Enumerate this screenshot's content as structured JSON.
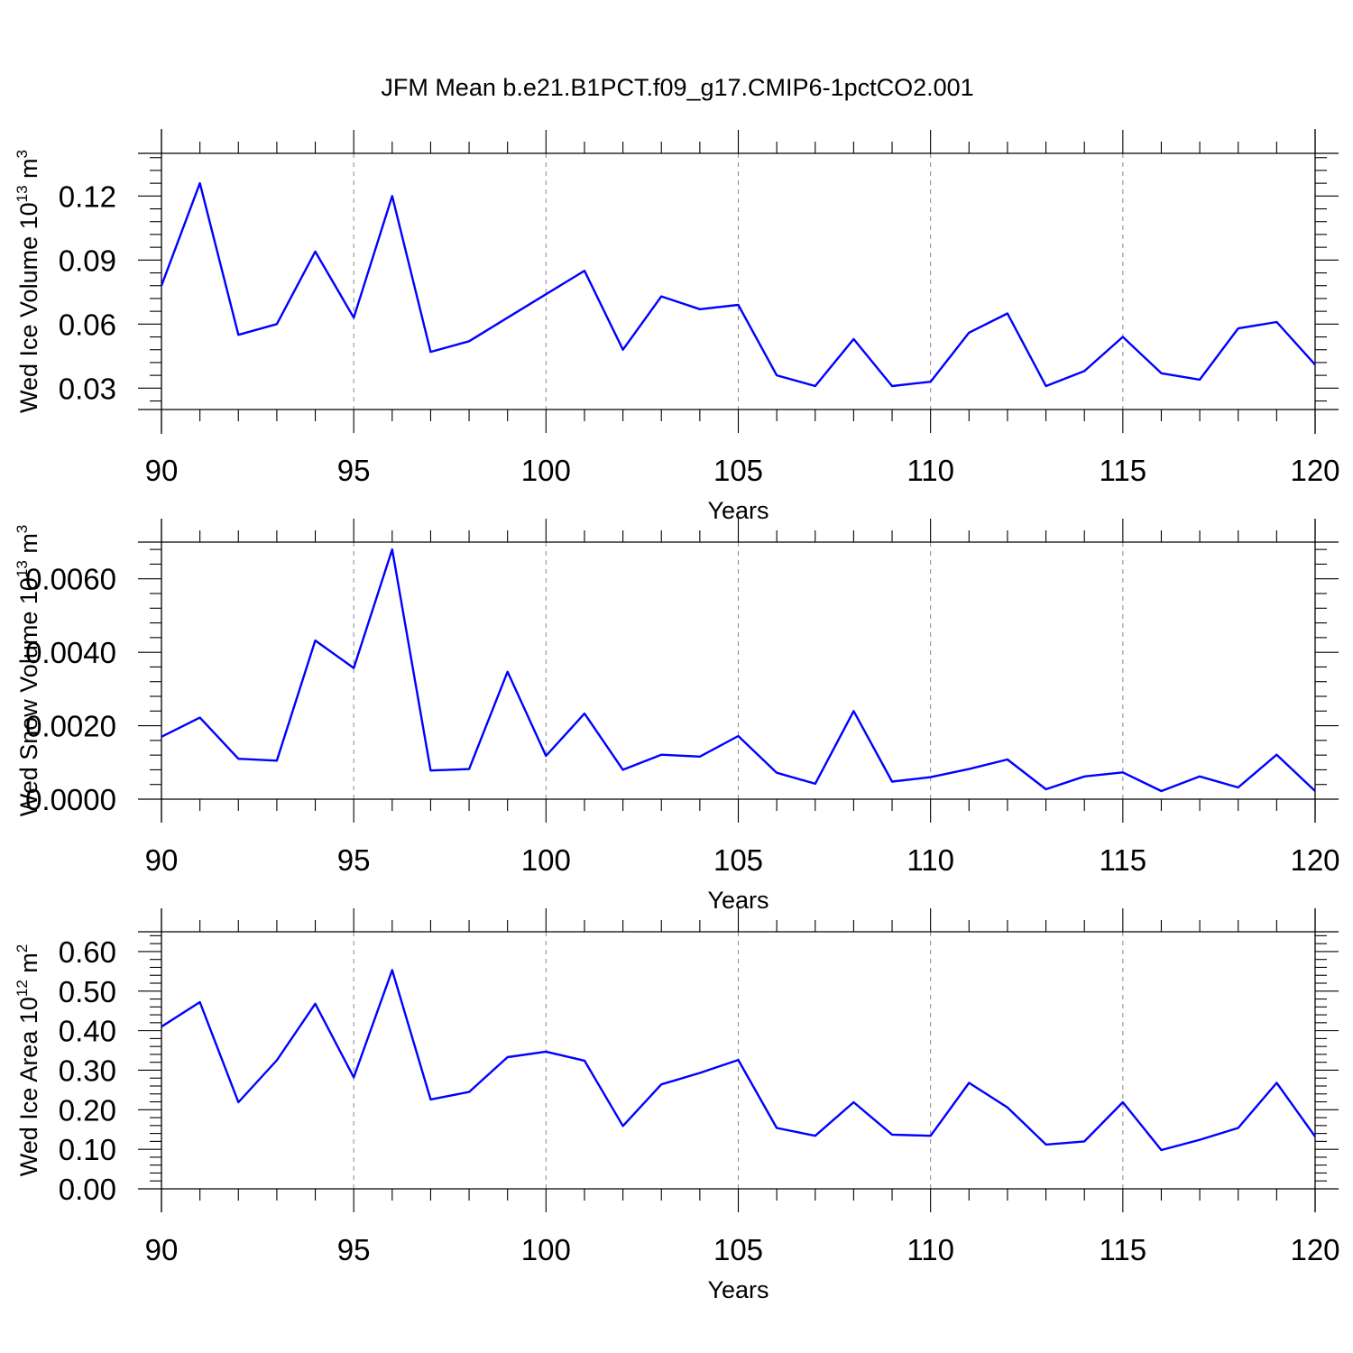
{
  "title": "JFM Mean b.e21.B1PCT.f09_g17.CMIP6-1pctCO2.001",
  "colors": {
    "line": "#0000ff",
    "grid": "#888888",
    "axis": "#000000"
  },
  "chart_data": [
    {
      "type": "line",
      "xlabel": "Years",
      "ylabel": {
        "text": "Wed Ice Volume 10",
        "exp": "13",
        "unit": " m",
        "unit_exp": "3"
      },
      "xlim": [
        90,
        120
      ],
      "ylim": [
        0.02,
        0.14
      ],
      "xticks": [
        90,
        95,
        100,
        105,
        110,
        115,
        120
      ],
      "xtick_labels": [
        "90",
        "95",
        "100",
        "105",
        "110",
        "115",
        "120"
      ],
      "yticks": [
        0.03,
        0.06,
        0.09,
        0.12
      ],
      "ytick_labels": [
        "0.03",
        "0.06",
        "0.09",
        "0.12"
      ],
      "grid": "vertical dashed at major x ticks",
      "x": [
        90,
        91,
        92,
        93,
        94,
        95,
        96,
        97,
        98,
        99,
        100,
        101,
        102,
        103,
        104,
        105,
        106,
        107,
        108,
        109,
        110,
        111,
        112,
        113,
        114,
        115,
        116,
        117,
        118,
        119,
        120
      ],
      "y": [
        0.078,
        0.126,
        0.055,
        0.06,
        0.094,
        0.063,
        0.12,
        0.047,
        0.052,
        0.063,
        0.074,
        0.085,
        0.048,
        0.073,
        0.067,
        0.069,
        0.036,
        0.031,
        0.053,
        0.031,
        0.033,
        0.056,
        0.065,
        0.031,
        0.038,
        0.054,
        0.037,
        0.034,
        0.058,
        0.061,
        0.041
      ]
    },
    {
      "type": "line",
      "xlabel": "Years",
      "ylabel": {
        "text": "Wed Snow Volume 10",
        "exp": "13",
        "unit": " m",
        "unit_exp": "3"
      },
      "xlim": [
        90,
        120
      ],
      "ylim": [
        0.0,
        0.007
      ],
      "xticks": [
        90,
        95,
        100,
        105,
        110,
        115,
        120
      ],
      "xtick_labels": [
        "90",
        "95",
        "100",
        "105",
        "110",
        "115",
        "120"
      ],
      "yticks": [
        0.0,
        0.002,
        0.004,
        0.006
      ],
      "ytick_labels": [
        "0.0000",
        "0.0020",
        "0.0040",
        "0.0060"
      ],
      "grid": "vertical dashed at major x ticks",
      "x": [
        90,
        91,
        92,
        93,
        94,
        95,
        96,
        97,
        98,
        99,
        100,
        101,
        102,
        103,
        104,
        105,
        106,
        107,
        108,
        109,
        110,
        111,
        112,
        113,
        114,
        115,
        116,
        117,
        118,
        119,
        120
      ],
      "y": [
        0.0017,
        0.00222,
        0.0011,
        0.00105,
        0.00432,
        0.00357,
        0.0068,
        0.00078,
        0.00082,
        0.00347,
        0.00118,
        0.00233,
        0.0008,
        0.00121,
        0.00116,
        0.00172,
        0.00072,
        0.00042,
        0.0024,
        0.00048,
        0.0006,
        0.00082,
        0.00108,
        0.00027,
        0.00062,
        0.00073,
        0.00022,
        0.00062,
        0.00032,
        0.00121,
        0.00022
      ]
    },
    {
      "type": "line",
      "xlabel": "Years",
      "ylabel": {
        "text": "Wed Ice Area 10",
        "exp": "12",
        "unit": " m",
        "unit_exp": "2"
      },
      "xlim": [
        90,
        120
      ],
      "ylim": [
        0.0,
        0.65
      ],
      "xticks": [
        90,
        95,
        100,
        105,
        110,
        115,
        120
      ],
      "xtick_labels": [
        "90",
        "95",
        "100",
        "105",
        "110",
        "115",
        "120"
      ],
      "yticks": [
        0.0,
        0.1,
        0.2,
        0.3,
        0.4,
        0.5,
        0.6
      ],
      "ytick_labels": [
        "0.00",
        "0.10",
        "0.20",
        "0.30",
        "0.40",
        "0.50",
        "0.60"
      ],
      "grid": "vertical dashed at major x ticks",
      "x": [
        90,
        91,
        92,
        93,
        94,
        95,
        96,
        97,
        98,
        99,
        100,
        101,
        102,
        103,
        104,
        105,
        106,
        107,
        108,
        109,
        110,
        111,
        112,
        113,
        114,
        115,
        116,
        117,
        118,
        119,
        120
      ],
      "y": [
        0.41,
        0.472,
        0.219,
        0.325,
        0.468,
        0.282,
        0.553,
        0.226,
        0.245,
        0.333,
        0.347,
        0.324,
        0.159,
        0.264,
        0.293,
        0.326,
        0.154,
        0.134,
        0.219,
        0.137,
        0.134,
        0.268,
        0.206,
        0.112,
        0.12,
        0.219,
        0.098,
        0.124,
        0.154,
        0.268,
        0.132
      ]
    }
  ]
}
